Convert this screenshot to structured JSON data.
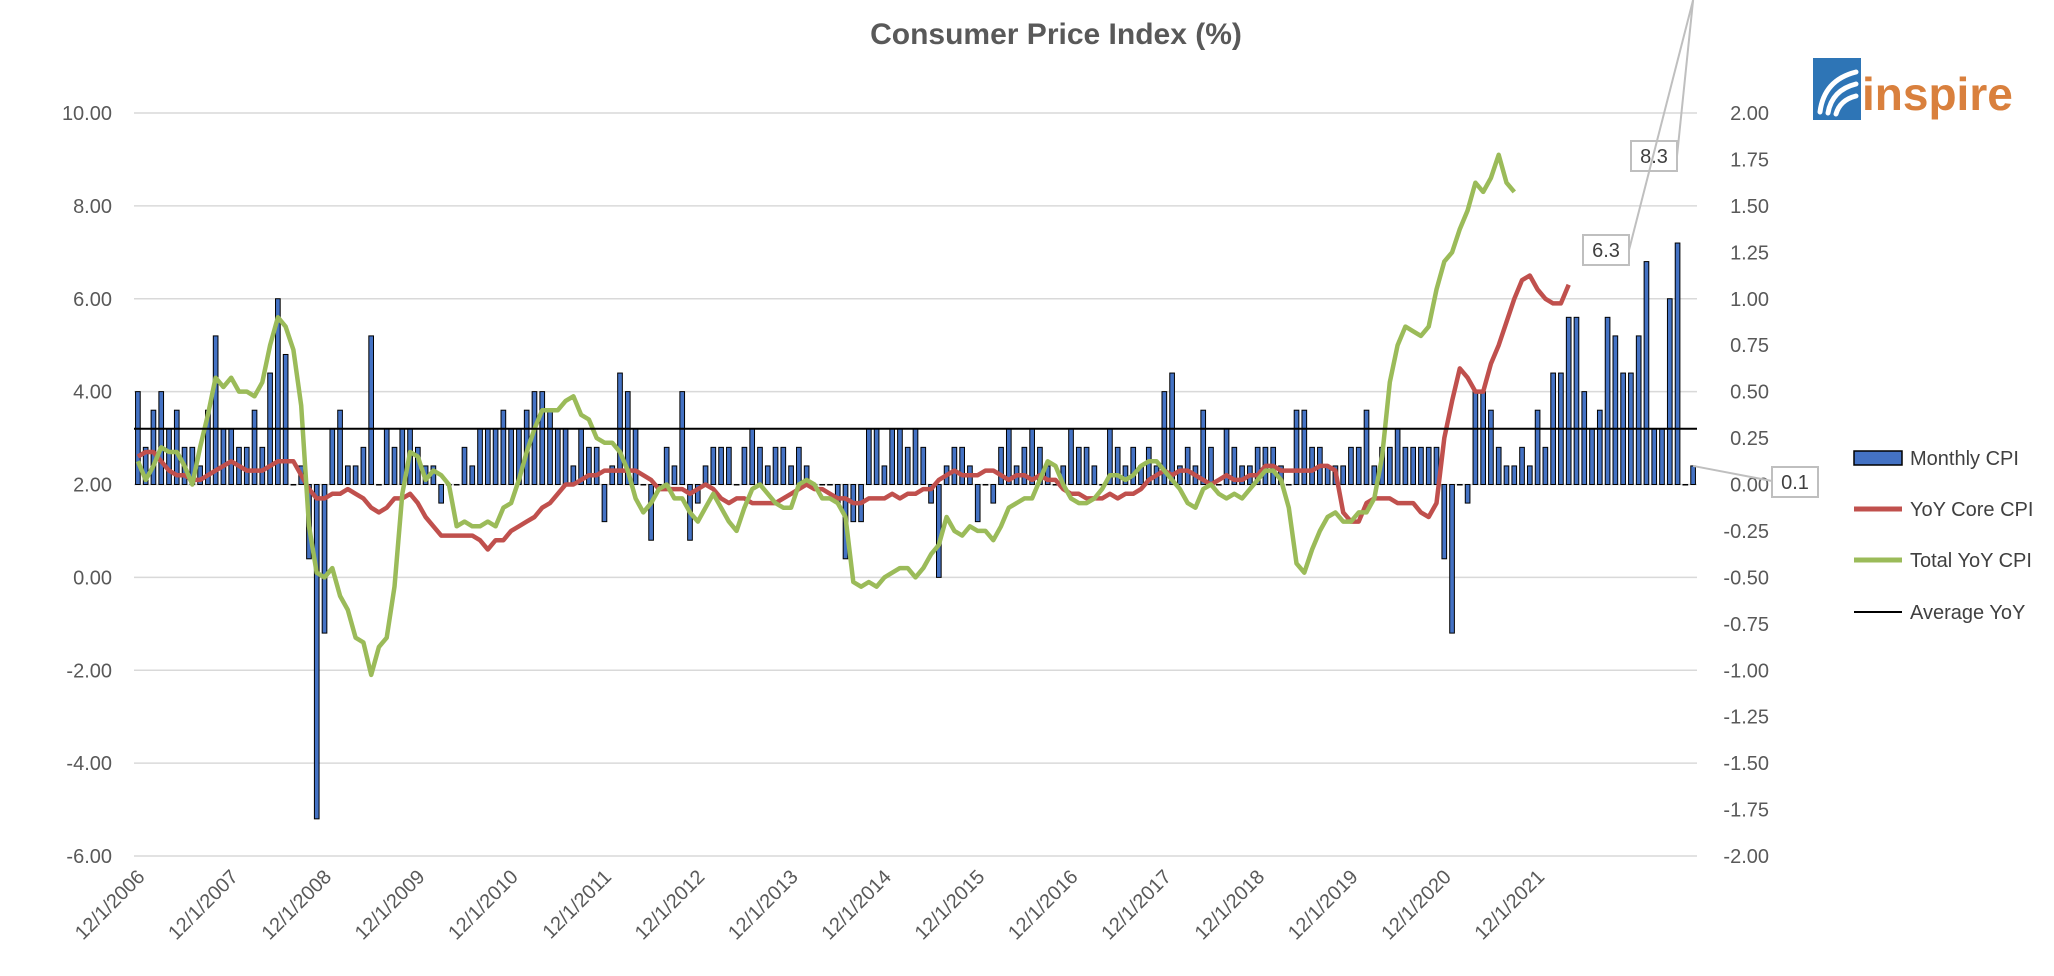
{
  "chart_data": {
    "type": "bar",
    "title": "Consumer Price Index (%)",
    "xlabel": "",
    "ylabel": "",
    "y_left_lim": [
      -6,
      10
    ],
    "y_left_ticks": [
      "-6.00",
      "-4.00",
      "-2.00",
      "0.00",
      "2.00",
      "4.00",
      "6.00",
      "8.00",
      "10.00"
    ],
    "y_right_lim": [
      -2,
      2
    ],
    "y_right_ticks": [
      "-2.00",
      "-1.75",
      "-1.50",
      "-1.25",
      "-1.00",
      "-0.75",
      "-0.50",
      "-0.25",
      "0.00",
      "0.25",
      "0.50",
      "0.75",
      "1.00",
      "1.25",
      "1.50",
      "1.75",
      "2.00"
    ],
    "x_start": "12/1/2006",
    "x_tick_labels": [
      "12/1/2006",
      "12/1/2007",
      "12/1/2008",
      "12/1/2009",
      "12/1/2010",
      "12/1/2011",
      "12/1/2012",
      "12/1/2013",
      "12/1/2014",
      "12/1/2015",
      "12/1/2016",
      "12/1/2017",
      "12/1/2018",
      "12/1/2019",
      "12/1/2020",
      "12/1/2021"
    ],
    "grid": true,
    "legend_position": "right",
    "series": [
      {
        "name": "Monthly CPI",
        "type": "bar",
        "axis": "right",
        "color": "#4472c4",
        "values": [
          0.5,
          0.2,
          0.4,
          0.5,
          0.3,
          0.4,
          0.2,
          0.2,
          0.1,
          0.4,
          0.8,
          0.3,
          0.3,
          0.2,
          0.2,
          0.4,
          0.2,
          0.6,
          1.0,
          0.7,
          0.0,
          0.1,
          -0.4,
          -1.8,
          -0.8,
          0.3,
          0.4,
          0.1,
          0.1,
          0.2,
          0.8,
          0.0,
          0.3,
          0.2,
          0.3,
          0.3,
          0.2,
          0.1,
          0.1,
          -0.1,
          0.0,
          0.0,
          0.2,
          0.1,
          0.3,
          0.3,
          0.3,
          0.4,
          0.3,
          0.3,
          0.4,
          0.5,
          0.5,
          0.4,
          0.3,
          0.3,
          0.1,
          0.3,
          0.2,
          0.2,
          -0.2,
          0.1,
          0.6,
          0.5,
          0.3,
          0.0,
          -0.3,
          0.0,
          0.2,
          0.1,
          0.5,
          -0.3,
          -0.1,
          0.1,
          0.2,
          0.2,
          0.2,
          0.0,
          0.2,
          0.3,
          0.2,
          0.1,
          0.2,
          0.2,
          0.1,
          0.2,
          0.1,
          0.0,
          0.0,
          0.0,
          -0.1,
          -0.4,
          -0.2,
          -0.2,
          0.3,
          0.3,
          0.1,
          0.3,
          0.3,
          0.2,
          0.3,
          0.2,
          -0.1,
          -0.5,
          0.1,
          0.2,
          0.2,
          0.1,
          -0.2,
          0.0,
          -0.1,
          0.2,
          0.3,
          0.1,
          0.2,
          0.3,
          0.2,
          0.1,
          0.0,
          0.1,
          0.3,
          0.2,
          0.2,
          0.1,
          0.0,
          0.3,
          0.2,
          0.1,
          0.2,
          0.1,
          0.2,
          0.1,
          0.5,
          0.6,
          0.1,
          0.2,
          0.1,
          0.4,
          0.2,
          0.0,
          0.3,
          0.2,
          0.1,
          0.1,
          0.2,
          0.2,
          0.2,
          0.1,
          0.0,
          0.4,
          0.4,
          0.2,
          0.2,
          0.1,
          0.1,
          0.1,
          0.2,
          0.2,
          0.4,
          0.1,
          0.2,
          0.2,
          0.3,
          0.2,
          0.2,
          0.2,
          0.2,
          0.2,
          -0.4,
          -0.8,
          0.0,
          -0.1,
          0.5,
          0.5,
          0.4,
          0.2,
          0.1,
          0.1,
          0.2,
          0.1,
          0.4,
          0.2,
          0.6,
          0.6,
          0.9,
          0.9,
          0.5,
          0.3,
          0.4,
          0.9,
          0.8,
          0.6,
          0.6,
          0.8,
          1.2,
          0.3,
          0.3,
          1.0,
          1.3,
          0.0,
          0.1
        ]
      },
      {
        "name": "YoY Core CPI",
        "type": "line",
        "axis": "left",
        "color": "#c0504d",
        "values": [
          2.6,
          2.7,
          2.7,
          2.5,
          2.3,
          2.2,
          2.2,
          2.1,
          2.1,
          2.2,
          2.3,
          2.4,
          2.5,
          2.4,
          2.3,
          2.3,
          2.3,
          2.4,
          2.5,
          2.5,
          2.5,
          2.2,
          1.9,
          1.7,
          1.7,
          1.8,
          1.8,
          1.9,
          1.8,
          1.7,
          1.5,
          1.4,
          1.5,
          1.7,
          1.7,
          1.8,
          1.6,
          1.3,
          1.1,
          0.9,
          0.9,
          0.9,
          0.9,
          0.9,
          0.8,
          0.6,
          0.8,
          0.8,
          1.0,
          1.1,
          1.2,
          1.3,
          1.5,
          1.6,
          1.8,
          2.0,
          2.0,
          2.1,
          2.2,
          2.2,
          2.3,
          2.3,
          2.3,
          2.3,
          2.3,
          2.2,
          2.1,
          1.9,
          1.9,
          1.9,
          1.9,
          1.8,
          1.9,
          2.0,
          1.9,
          1.7,
          1.6,
          1.7,
          1.7,
          1.6,
          1.6,
          1.6,
          1.6,
          1.7,
          1.8,
          1.9,
          2.0,
          1.9,
          1.9,
          1.8,
          1.7,
          1.7,
          1.6,
          1.6,
          1.7,
          1.7,
          1.7,
          1.8,
          1.7,
          1.8,
          1.8,
          1.9,
          1.9,
          2.1,
          2.2,
          2.3,
          2.2,
          2.2,
          2.2,
          2.3,
          2.3,
          2.2,
          2.1,
          2.2,
          2.2,
          2.1,
          2.2,
          2.1,
          2.1,
          1.9,
          1.8,
          1.8,
          1.7,
          1.7,
          1.7,
          1.8,
          1.7,
          1.8,
          1.8,
          1.9,
          2.1,
          2.2,
          2.3,
          2.2,
          2.3,
          2.3,
          2.2,
          2.1,
          2.0,
          2.1,
          2.2,
          2.1,
          2.1,
          2.2,
          2.2,
          2.4,
          2.4,
          2.3,
          2.3,
          2.3,
          2.3,
          2.3,
          2.4,
          2.4,
          2.3,
          1.4,
          1.2,
          1.2,
          1.6,
          1.7,
          1.7,
          1.7,
          1.6,
          1.6,
          1.6,
          1.4,
          1.3,
          1.6,
          3.0,
          3.8,
          4.5,
          4.3,
          4.0,
          4.0,
          4.6,
          5.0,
          5.5,
          6.0,
          6.4,
          6.5,
          6.2,
          6.0,
          5.9,
          5.9,
          6.3
        ],
        "callout": "6.3"
      },
      {
        "name": "Total YoY CPI",
        "type": "line",
        "axis": "left",
        "color": "#9bbb59",
        "values": [
          2.5,
          2.1,
          2.4,
          2.8,
          2.7,
          2.7,
          2.4,
          2.0,
          2.8,
          3.5,
          4.3,
          4.1,
          4.3,
          4.0,
          4.0,
          3.9,
          4.2,
          5.0,
          5.6,
          5.4,
          4.9,
          3.7,
          1.1,
          0.1,
          0.0,
          0.2,
          -0.4,
          -0.7,
          -1.3,
          -1.4,
          -2.1,
          -1.5,
          -1.3,
          -0.2,
          1.8,
          2.7,
          2.6,
          2.1,
          2.3,
          2.2,
          2.0,
          1.1,
          1.2,
          1.1,
          1.1,
          1.2,
          1.1,
          1.5,
          1.6,
          2.1,
          2.7,
          3.2,
          3.6,
          3.6,
          3.6,
          3.8,
          3.9,
          3.5,
          3.4,
          3.0,
          2.9,
          2.9,
          2.7,
          2.3,
          1.7,
          1.4,
          1.6,
          1.9,
          2.0,
          1.7,
          1.7,
          1.4,
          1.2,
          1.5,
          1.8,
          1.5,
          1.2,
          1.0,
          1.5,
          1.9,
          2.0,
          1.8,
          1.6,
          1.5,
          1.5,
          2.0,
          2.1,
          2.0,
          1.7,
          1.7,
          1.6,
          1.3,
          -0.1,
          -0.2,
          -0.1,
          -0.2,
          0.0,
          0.1,
          0.2,
          0.2,
          0.0,
          0.2,
          0.5,
          0.7,
          1.3,
          1.0,
          0.9,
          1.1,
          1.0,
          1.0,
          0.8,
          1.1,
          1.5,
          1.6,
          1.7,
          1.7,
          2.1,
          2.5,
          2.4,
          2.0,
          1.7,
          1.6,
          1.6,
          1.7,
          1.9,
          2.2,
          2.2,
          2.1,
          2.2,
          2.4,
          2.5,
          2.5,
          2.3,
          2.1,
          1.9,
          1.6,
          1.5,
          1.9,
          2.0,
          1.8,
          1.7,
          1.8,
          1.7,
          1.9,
          2.1,
          2.3,
          2.3,
          2.1,
          1.5,
          0.3,
          0.1,
          0.6,
          1.0,
          1.3,
          1.4,
          1.2,
          1.2,
          1.4,
          1.4,
          1.7,
          2.6,
          4.2,
          5.0,
          5.4,
          5.3,
          5.2,
          5.4,
          6.2,
          6.8,
          7.0,
          7.5,
          7.9,
          8.5,
          8.3,
          8.6,
          9.1,
          8.5,
          8.3
        ],
        "callout": "8.3"
      },
      {
        "name": "Average YoY",
        "type": "line",
        "axis": "left",
        "color": "#000000",
        "values": [
          3.2,
          3.2
        ]
      }
    ],
    "bar_callout": "0.1"
  },
  "legend": [
    {
      "label": "Monthly CPI",
      "swatch": "bar",
      "color": "#4472c4"
    },
    {
      "label": "YoY Core CPI",
      "swatch": "line",
      "color": "#c0504d"
    },
    {
      "label": "Total YoY CPI",
      "swatch": "line",
      "color": "#9bbb59"
    },
    {
      "label": "Average YoY",
      "swatch": "line",
      "color": "#000000"
    }
  ],
  "logo": {
    "text": "inspire",
    "box_color": "#2e75b6",
    "text_color": "#d9803d"
  }
}
